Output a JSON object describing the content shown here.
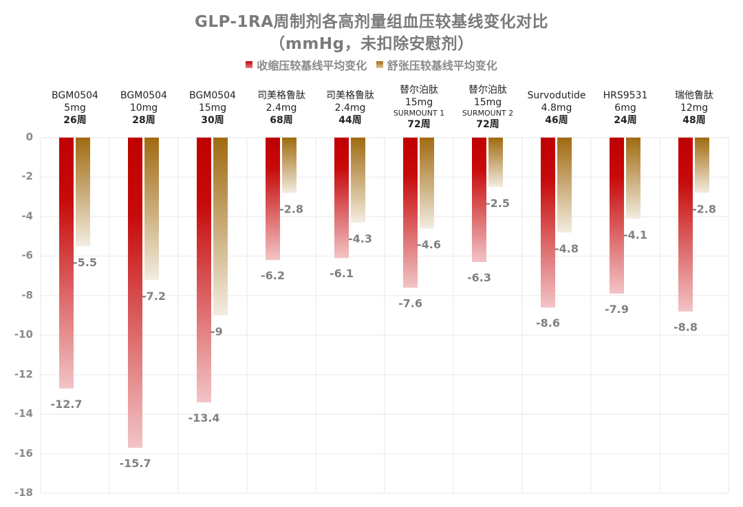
{
  "chart_data": {
    "type": "bar",
    "title": "GLP-1RA周制剂各高剂量组血压较基线变化对比",
    "subtitle": "（mmHg，未扣除安慰剂）",
    "xlabel": "",
    "ylabel": "",
    "ylim": [
      -18,
      0
    ],
    "yticks": [
      0,
      -2,
      -4,
      -6,
      -8,
      -10,
      -12,
      -14,
      -16,
      -18
    ],
    "ytick_labels": [
      "0",
      "-2",
      "-4",
      "-6",
      "-8",
      "-10",
      "-12",
      "-14",
      "-16",
      "-18"
    ],
    "grid": true,
    "legend_position": "top-center",
    "categories": [
      {
        "drug": "BGM0504",
        "dose": "5mg",
        "trial": "",
        "weeks": "26周"
      },
      {
        "drug": "BGM0504",
        "dose": "10mg",
        "trial": "",
        "weeks": "28周"
      },
      {
        "drug": "BGM0504",
        "dose": "15mg",
        "trial": "",
        "weeks": "30周"
      },
      {
        "drug": "司美格鲁肽",
        "dose": "2.4mg",
        "trial": "",
        "weeks": "68周"
      },
      {
        "drug": "司美格鲁肽",
        "dose": "2.4mg",
        "trial": "",
        "weeks": "44周"
      },
      {
        "drug": "替尔泊肽",
        "dose": "15mg",
        "trial": "SURMOUNT 1",
        "weeks": "72周"
      },
      {
        "drug": "替尔泊肽",
        "dose": "15mg",
        "trial": "SURMOUNT 2",
        "weeks": "72周"
      },
      {
        "drug": "Survodutide",
        "dose": "4.8mg",
        "trial": "",
        "weeks": "46周"
      },
      {
        "drug": "HRS9531",
        "dose": "6mg",
        "trial": "",
        "weeks": "24周"
      },
      {
        "drug": "瑞他鲁肽",
        "dose": "12mg",
        "trial": "",
        "weeks": "48周"
      }
    ],
    "series": [
      {
        "name": "收缩压较基线平均变化",
        "color_top": "#c00000",
        "color_bottom": "#f2c4c6",
        "values": [
          -12.7,
          -15.7,
          -13.4,
          -6.2,
          -6.1,
          -7.6,
          -6.3,
          -8.6,
          -7.9,
          -8.8
        ],
        "labels": [
          "-12.7",
          "-15.7",
          "-13.4",
          "-6.2",
          "-6.1",
          "-7.6",
          "-6.3",
          "-8.6",
          "-7.9",
          "-8.8"
        ]
      },
      {
        "name": "舒张压较基线平均变化",
        "color_top": "#a06a10",
        "color_bottom": "#f3ece0",
        "values": [
          -5.5,
          -7.2,
          -9,
          -2.8,
          -4.3,
          -4.6,
          -2.5,
          -4.8,
          -4.1,
          -2.8
        ],
        "labels": [
          "-5.5",
          "-7.2",
          "-9",
          "-2.8",
          "-4.3",
          "-4.6",
          "-2.5",
          "-4.8",
          "-4.1",
          "-2.8"
        ]
      }
    ]
  }
}
